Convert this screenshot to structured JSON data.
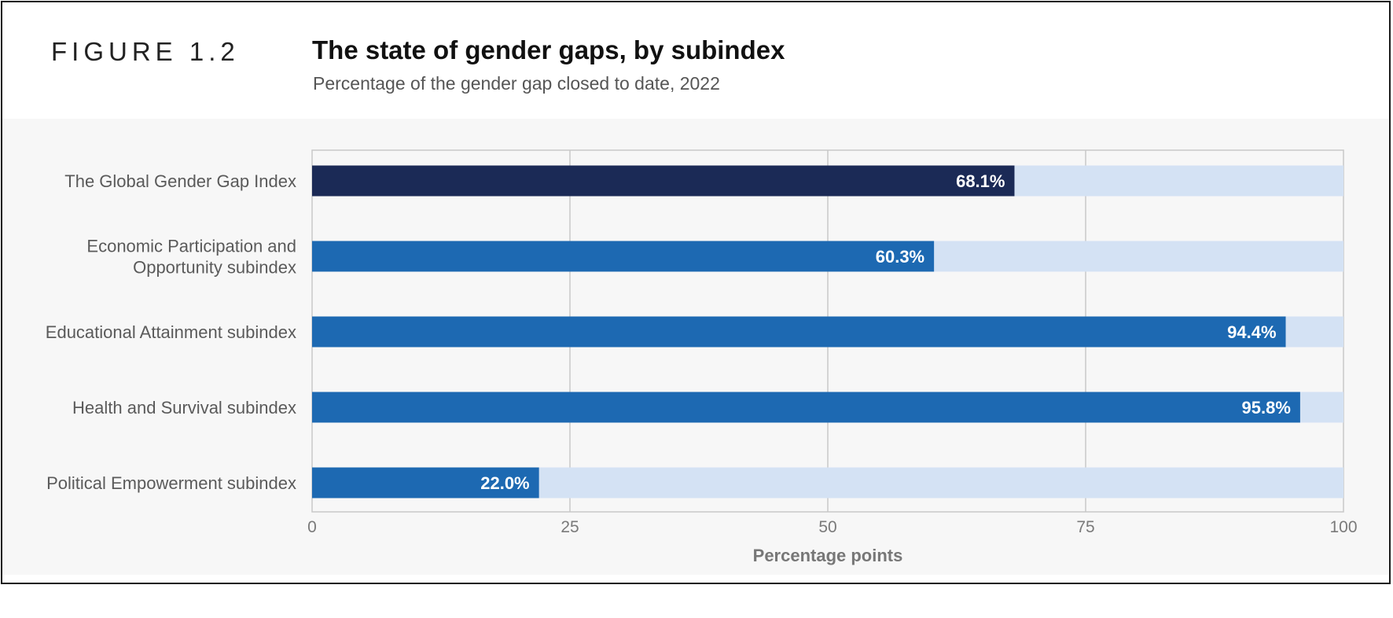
{
  "figure_label": "FIGURE 1.2",
  "chart_data": {
    "type": "bar",
    "orientation": "horizontal",
    "title": "The state of gender gaps, by subindex",
    "subtitle": "Percentage of the gender gap closed to date, 2022",
    "xlabel": "Percentage points",
    "ylabel": "",
    "xlim": [
      0,
      100
    ],
    "x_ticks": [
      0,
      25,
      50,
      75,
      100
    ],
    "grid": true,
    "categories": [
      [
        "The Global Gender Gap Index"
      ],
      [
        "Economic Participation and",
        "Opportunity subindex"
      ],
      [
        "Educational Attainment subindex"
      ],
      [
        "Health and Survival subindex"
      ],
      [
        "Political Empowerment subindex"
      ]
    ],
    "values": [
      68.1,
      60.3,
      94.4,
      95.8,
      22.0
    ],
    "value_labels": [
      "68.1%",
      "60.3%",
      "94.4%",
      "95.8%",
      "22.0%"
    ],
    "bar_colors": [
      "#1b2a56",
      "#1d69b2",
      "#1d69b2",
      "#1d69b2",
      "#1d69b2"
    ],
    "remainder_color": "#d4e2f4",
    "grid_color": "#c8c8c8"
  }
}
